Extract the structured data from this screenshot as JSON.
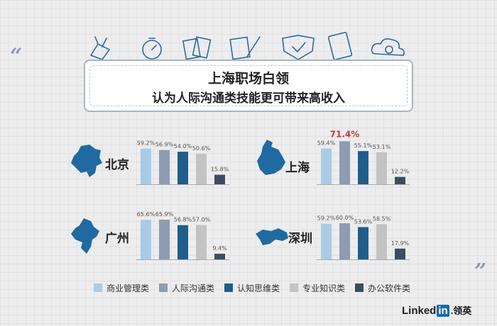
{
  "title": {
    "line1": "上海职场白领",
    "line2": "认为人际沟通类技能更可带来高收入"
  },
  "colors": {
    "series": [
      "#a9cbe6",
      "#8e9cb2",
      "#1f5e8b",
      "#c3c3c3",
      "#3f4b60"
    ],
    "highlight": "#c23b3b",
    "map": "#1f6aa0"
  },
  "chart_data": [
    {
      "type": "bar",
      "title": "北京",
      "categories": [
        "商业管理类",
        "人际沟通类",
        "认知思维类",
        "专业知识类",
        "办公软件类"
      ],
      "values": [
        59.2,
        56.9,
        54.0,
        50.6,
        15.8
      ],
      "value_labels": [
        "59.2%",
        "56.9%",
        "54.0%",
        "50.6%",
        "15.8%"
      ],
      "ylim": [
        0,
        75
      ]
    },
    {
      "type": "bar",
      "title": "上海",
      "categories": [
        "商业管理类",
        "人际沟通类",
        "认知思维类",
        "专业知识类",
        "办公软件类"
      ],
      "values": [
        59.4,
        71.4,
        55.1,
        53.1,
        12.2
      ],
      "value_labels": [
        "59.4%",
        "71.4%",
        "55.1%",
        "53.1%",
        "12.2%"
      ],
      "highlight_index": 1,
      "ylim": [
        0,
        75
      ]
    },
    {
      "type": "bar",
      "title": "广州",
      "categories": [
        "商业管理类",
        "人际沟通类",
        "认知思维类",
        "专业知识类",
        "办公软件类"
      ],
      "values": [
        65.6,
        65.9,
        56.8,
        57.0,
        9.4
      ],
      "value_labels": [
        "65.6%",
        "65.9%",
        "56.8%",
        "57.0%",
        "9.4%"
      ],
      "ylim": [
        0,
        75
      ]
    },
    {
      "type": "bar",
      "title": "深圳",
      "categories": [
        "商业管理类",
        "人际沟通类",
        "认知思维类",
        "专业知识类",
        "办公软件类"
      ],
      "values": [
        59.2,
        60.0,
        53.6,
        58.5,
        17.9
      ],
      "value_labels": [
        "59.2%",
        "60.0%",
        "53.6%",
        "58.5%",
        "17.9%"
      ],
      "ylim": [
        0,
        75
      ]
    }
  ],
  "legend": [
    "商业管理类",
    "人际沟通类",
    "认知思维类",
    "专业知识类",
    "办公软件类"
  ],
  "logo": {
    "word": "Linked",
    "in": "in",
    "cn": ".领英"
  },
  "decor": {
    "open_quote": "“",
    "close_quote": "”"
  }
}
